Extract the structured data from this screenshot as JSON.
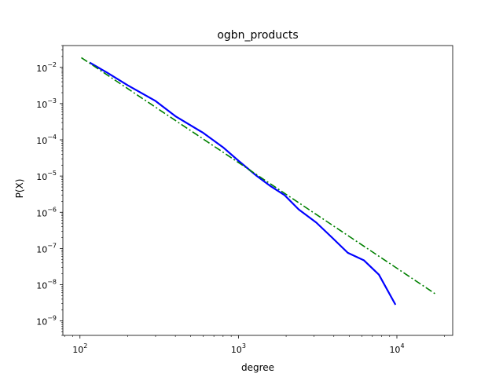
{
  "chart_data": {
    "type": "line",
    "title": "ogbn_products",
    "xlabel": "degree",
    "ylabel": "P(X)",
    "xscale": "log",
    "yscale": "log",
    "xlim": [
      78,
      22500
    ],
    "ylim": [
      4e-10,
      0.04
    ],
    "grid": false,
    "legend": "none",
    "xticks": [
      {
        "value": 100,
        "base": "10",
        "exp": "2"
      },
      {
        "value": 1000,
        "base": "10",
        "exp": "3"
      },
      {
        "value": 10000,
        "base": "10",
        "exp": "4"
      }
    ],
    "yticks": [
      {
        "value": 1e-09,
        "base": "10",
        "exp": "−9"
      },
      {
        "value": 1e-08,
        "base": "10",
        "exp": "−8"
      },
      {
        "value": 1e-07,
        "base": "10",
        "exp": "−7"
      },
      {
        "value": 1e-06,
        "base": "10",
        "exp": "−6"
      },
      {
        "value": 1e-05,
        "base": "10",
        "exp": "−5"
      },
      {
        "value": 0.0001,
        "base": "10",
        "exp": "−4"
      },
      {
        "value": 0.001,
        "base": "10",
        "exp": "−3"
      },
      {
        "value": 0.01,
        "base": "10",
        "exp": "−2"
      }
    ],
    "series": [
      {
        "style": "solid",
        "color": "#0000ff",
        "points": [
          [
            115,
            0.0136
          ],
          [
            148,
            0.0072
          ],
          [
            200,
            0.0032
          ],
          [
            300,
            0.00118
          ],
          [
            400,
            0.00045
          ],
          [
            600,
            0.000155
          ],
          [
            800,
            6.2e-05
          ],
          [
            1000,
            2.65e-05
          ],
          [
            1300,
            1.02e-05
          ],
          [
            1600,
            5.2e-06
          ],
          [
            1950,
            3e-06
          ],
          [
            2400,
            1.2e-06
          ],
          [
            3100,
            5.2e-07
          ],
          [
            3900,
            2e-07
          ],
          [
            4900,
            7.6e-08
          ],
          [
            6200,
            4.7e-08
          ],
          [
            7700,
            1.9e-08
          ],
          [
            9800,
            2.8e-09
          ]
        ]
      },
      {
        "style": "dashdot",
        "color": "#008000",
        "points": [
          [
            102,
            0.0185
          ],
          [
            17800,
            5.3e-09
          ]
        ]
      }
    ]
  }
}
